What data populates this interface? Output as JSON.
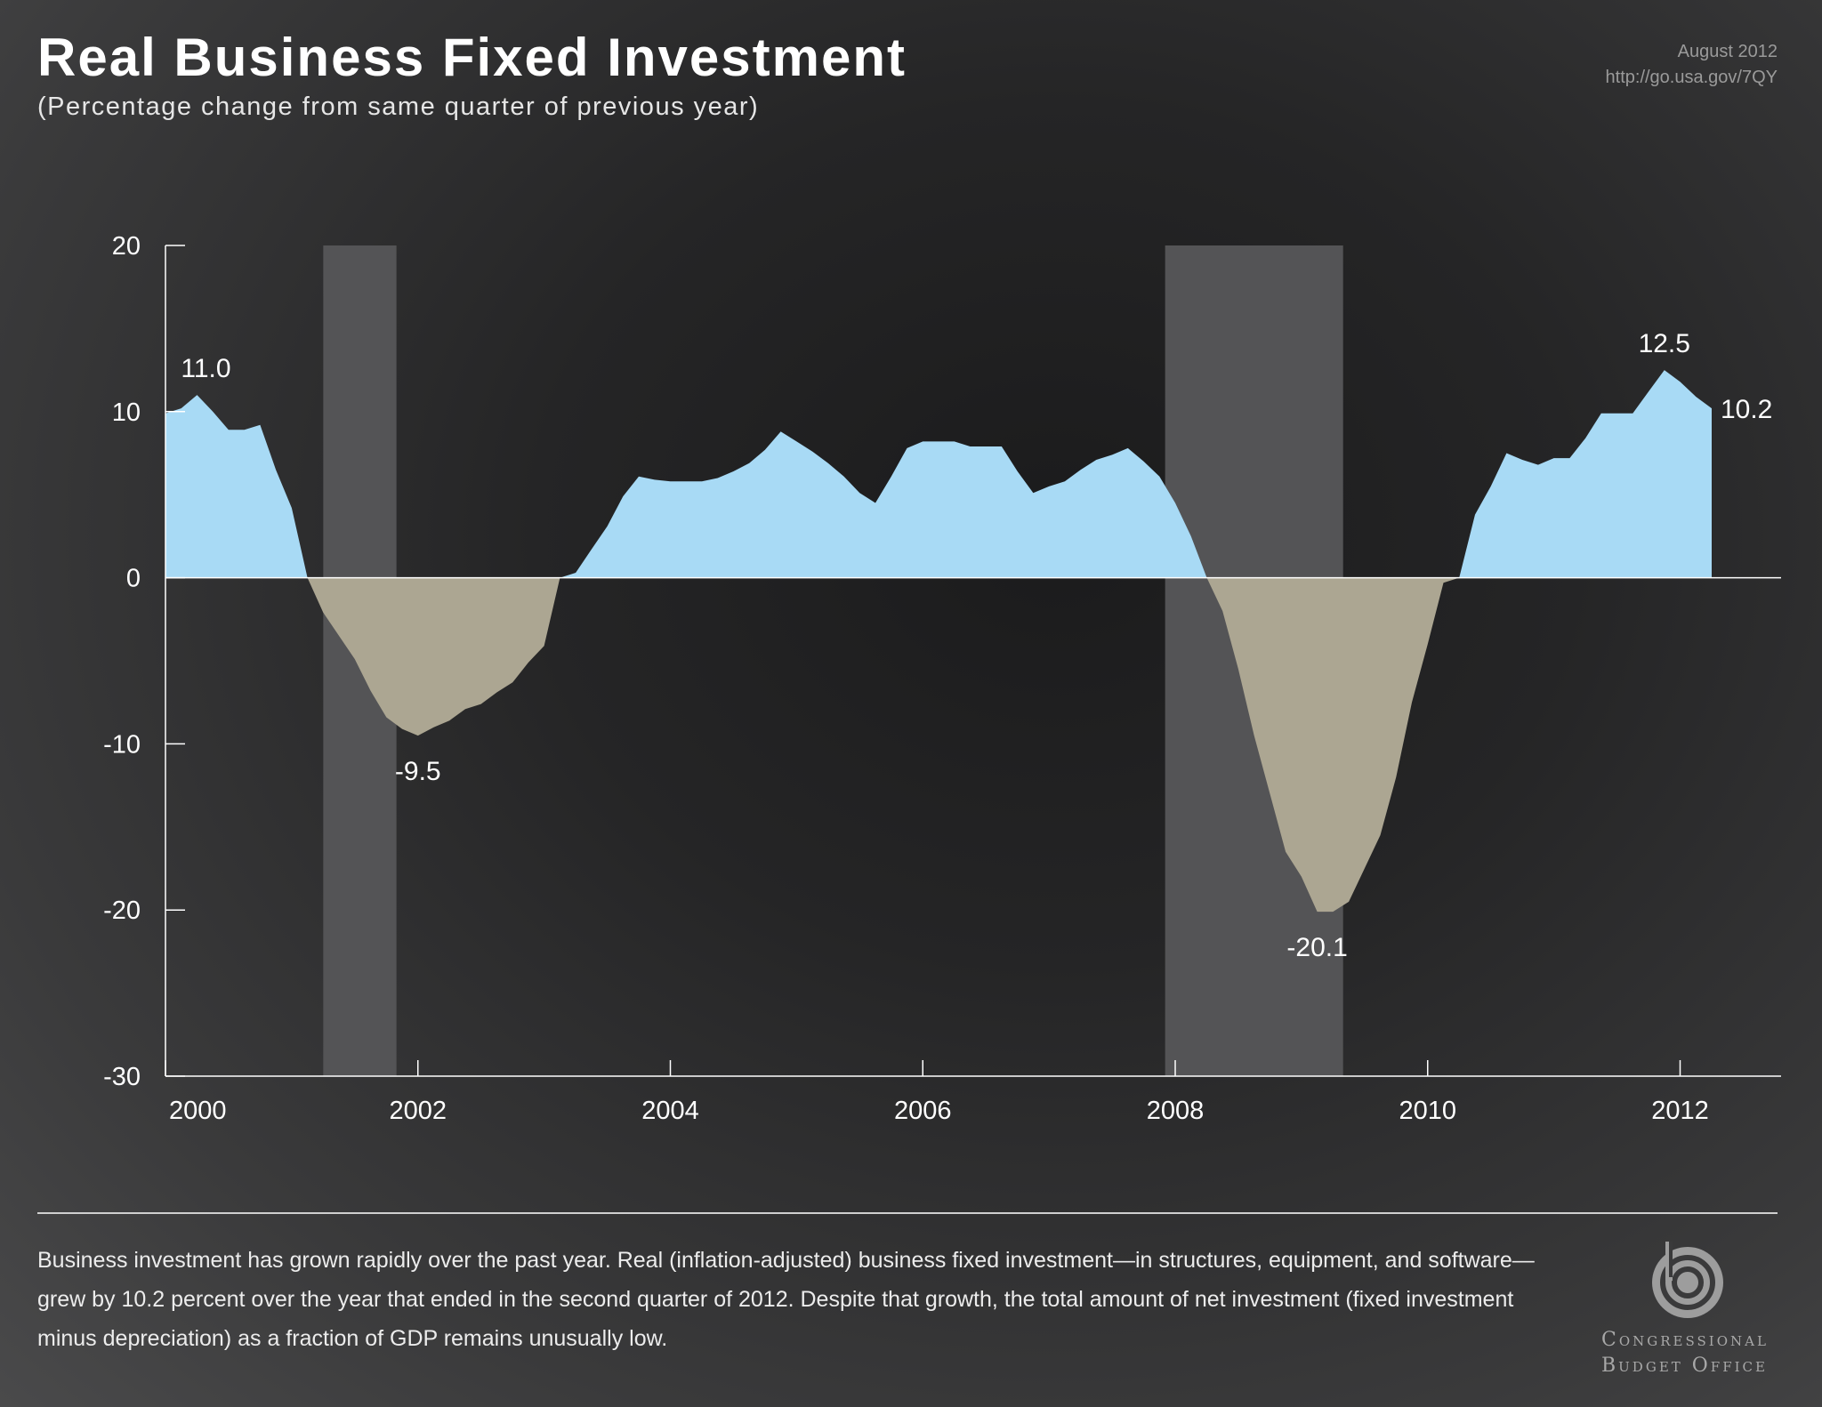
{
  "header": {
    "title": "Real Business Fixed Investment",
    "subtitle": "(Percentage change from same quarter of previous year)",
    "date": "August 2012",
    "url": "http://go.usa.gov/7QY"
  },
  "chart_data": {
    "type": "area",
    "title": "Real Business Fixed Investment",
    "subtitle": "(Percentage change from same quarter of previous year)",
    "xlabel": "",
    "ylabel": "",
    "xlim": [
      2000,
      2012.8
    ],
    "ylim": [
      -30,
      20
    ],
    "x_ticks": [
      2000,
      2002,
      2004,
      2006,
      2008,
      2010,
      2012
    ],
    "y_ticks": [
      -30,
      -20,
      -10,
      0,
      10,
      20
    ],
    "grid": false,
    "legend": "none",
    "colors": {
      "positive": "#a8daf5",
      "negative": "#aca692",
      "recession": "#545456",
      "zero_line": "#ffffff",
      "axis": "#ffffff"
    },
    "recessions": [
      {
        "start": 2001.25,
        "end": 2001.83
      },
      {
        "start": 2007.92,
        "end": 2009.33
      }
    ],
    "series": [
      {
        "x": [
          2000.0,
          2000.125,
          2000.25,
          2000.375,
          2000.5,
          2000.625,
          2000.75,
          2000.875,
          2001.0,
          2001.125,
          2001.25,
          2001.375,
          2001.5,
          2001.625,
          2001.75,
          2001.875,
          2002.0,
          2002.125,
          2002.25,
          2002.375,
          2002.5,
          2002.625,
          2002.75,
          2002.875,
          2003.0,
          2003.125,
          2003.25,
          2003.375,
          2003.5,
          2003.625,
          2003.75,
          2003.875,
          2004.0,
          2004.125,
          2004.25,
          2004.375,
          2004.5,
          2004.625,
          2004.75,
          2004.875,
          2005.0,
          2005.125,
          2005.25,
          2005.375,
          2005.5,
          2005.625,
          2005.75,
          2005.875,
          2006.0,
          2006.125,
          2006.25,
          2006.375,
          2006.5,
          2006.625,
          2006.75,
          2006.875,
          2007.0,
          2007.125,
          2007.25,
          2007.375,
          2007.5,
          2007.625,
          2007.75,
          2007.875,
          2008.0,
          2008.125,
          2008.25,
          2008.375,
          2008.5,
          2008.625,
          2008.75,
          2008.875,
          2009.0,
          2009.125,
          2009.25,
          2009.375,
          2009.5,
          2009.625,
          2009.75,
          2009.875,
          2010.0,
          2010.125,
          2010.25,
          2010.375,
          2010.5,
          2010.625,
          2010.75,
          2010.875,
          2011.0,
          2011.125,
          2011.25,
          2011.375,
          2011.5,
          2011.625,
          2011.75,
          2011.875,
          2012.0,
          2012.125,
          2012.25
        ],
        "values": [
          9.9,
          10.2,
          11.0,
          10.0,
          8.9,
          8.9,
          9.2,
          6.5,
          4.2,
          0.0,
          -2.1,
          -3.5,
          -4.9,
          -6.8,
          -8.4,
          -9.1,
          -9.5,
          -9.0,
          -8.6,
          -7.9,
          -7.6,
          -6.9,
          -6.3,
          -5.1,
          -4.1,
          0.0,
          0.3,
          1.7,
          3.1,
          4.9,
          6.1,
          5.9,
          5.8,
          5.8,
          5.8,
          6.0,
          6.4,
          6.9,
          7.7,
          8.8,
          8.2,
          7.6,
          6.9,
          6.1,
          5.1,
          4.5,
          6.1,
          7.8,
          8.2,
          8.2,
          8.2,
          7.9,
          7.9,
          7.9,
          6.4,
          5.1,
          5.5,
          5.8,
          6.5,
          7.1,
          7.4,
          7.8,
          7.0,
          6.1,
          4.5,
          2.5,
          0.0,
          -2.0,
          -5.5,
          -9.5,
          -13.0,
          -16.5,
          -18.0,
          -20.1,
          -20.1,
          -19.5,
          -17.5,
          -15.5,
          -12.0,
          -7.5,
          -4.0,
          -0.3,
          0.0,
          3.8,
          5.5,
          7.5,
          7.1,
          6.8,
          7.2,
          7.2,
          8.4,
          9.9,
          9.9,
          9.9,
          11.2,
          12.5,
          11.8,
          10.9,
          10.2
        ]
      }
    ],
    "annotations": [
      {
        "x": 2000.25,
        "y": 11.0,
        "text": "11.0",
        "placement": "above"
      },
      {
        "x": 2002.0,
        "y": -9.5,
        "text": "-9.5",
        "placement": "below"
      },
      {
        "x": 2009.125,
        "y": -20.1,
        "text": "-20.1",
        "placement": "below"
      },
      {
        "x": 2011.875,
        "y": 12.5,
        "text": "12.5",
        "placement": "above"
      },
      {
        "x": 2012.25,
        "y": 10.2,
        "text": "10.2",
        "placement": "right"
      }
    ]
  },
  "footer": {
    "caption": "Business investment has grown rapidly over the past year. Real (inflation-adjusted) business fixed investment—in structures, equipment, and software—grew by 10.2 percent over the year that ended in the second quarter of 2012. Despite that growth, the total amount of net investment (fixed investment minus depreciation) as a fraction of GDP remains unusually low.",
    "logo_line1": "Congressional",
    "logo_line2": "Budget Office"
  }
}
